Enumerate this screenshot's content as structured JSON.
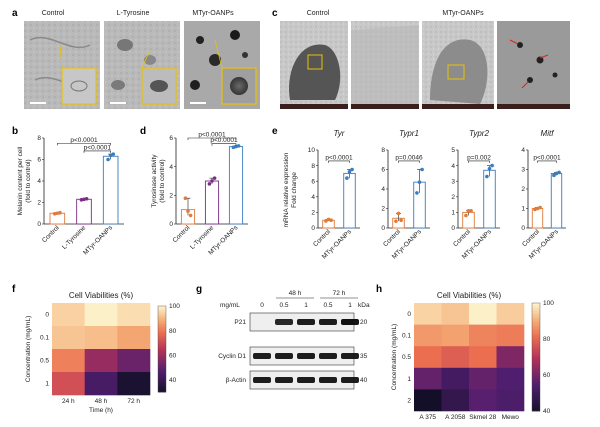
{
  "panels": {
    "a": {
      "label": "a",
      "titles": [
        "Control",
        "L-Tyrosine",
        "MTyr-OANPs"
      ]
    },
    "c": {
      "label": "c",
      "titles": [
        "Control",
        "MTyr-OANPs"
      ]
    },
    "b": {
      "label": "b"
    },
    "d": {
      "label": "d"
    },
    "e": {
      "label": "e"
    },
    "f": {
      "label": "f"
    },
    "g": {
      "label": "g"
    },
    "h": {
      "label": "h"
    }
  },
  "chart_data": [
    {
      "id": "b",
      "type": "bar",
      "ylabel": "Melanin content per cell\n(fold to control)",
      "categories": [
        "Control",
        "L-Tyrosine",
        "MTyr-OANPs"
      ],
      "values": [
        1.0,
        2.3,
        6.3
      ],
      "points": [
        [
          0.95,
          1.0,
          1.05
        ],
        [
          2.25,
          2.3,
          2.35
        ],
        [
          6.0,
          6.4,
          6.5
        ]
      ],
      "ylim": [
        0,
        8
      ],
      "yticks": [
        0,
        2,
        4,
        6,
        8
      ],
      "colors": [
        "#e07b39",
        "#7b2c85",
        "#3a7dc0"
      ],
      "brackets": [
        {
          "from": 0,
          "to": 2,
          "label": "p<0.0001",
          "y": 7.5
        },
        {
          "from": 1,
          "to": 2,
          "label": "p<0.0001",
          "y": 6.8
        }
      ]
    },
    {
      "id": "d",
      "type": "bar",
      "ylabel": "Tyrosinase activity\n(fold to control)",
      "categories": [
        "Control",
        "L-Tyrosine",
        "MTyr-OANPs"
      ],
      "values": [
        1.0,
        3.0,
        5.4
      ],
      "points": [
        [
          1.8,
          0.9,
          0.6
        ],
        [
          2.8,
          3.0,
          3.2
        ],
        [
          5.35,
          5.4,
          5.45
        ]
      ],
      "ylim": [
        0,
        6
      ],
      "yticks": [
        0,
        2,
        4,
        6
      ],
      "colors": [
        "#e07b39",
        "#7b2c85",
        "#3a7dc0"
      ],
      "brackets": [
        {
          "from": 0,
          "to": 2,
          "label": "p<0.0001",
          "y": 6.0
        },
        {
          "from": 1,
          "to": 2,
          "label": "p<0.0001",
          "y": 5.6
        }
      ]
    },
    {
      "id": "e",
      "type": "bar",
      "ylabel": "mRNA relative expression\nFold change",
      "genes": [
        {
          "name": "Tyr",
          "values": [
            1.0,
            7.0
          ],
          "points": [
            [
              0.9,
              1.1,
              1.0
            ],
            [
              6.4,
              7.2,
              7.5
            ]
          ],
          "ylim": [
            0,
            10
          ],
          "yticks": [
            0,
            2,
            4,
            6,
            8,
            10
          ],
          "p": "p<0.0001"
        },
        {
          "name": "Typr1",
          "values": [
            1.0,
            4.7
          ],
          "points": [
            [
              0.7,
              1.5,
              0.8
            ],
            [
              3.6,
              4.7,
              6.0
            ]
          ],
          "ylim": [
            0,
            8
          ],
          "yticks": [
            0,
            2,
            4,
            6,
            8
          ],
          "p": "p=0.0046"
        },
        {
          "name": "Typr2",
          "values": [
            1.0,
            3.7
          ],
          "points": [
            [
              0.8,
              1.1,
              1.1
            ],
            [
              3.3,
              3.8,
              4.0
            ]
          ],
          "ylim": [
            0,
            5
          ],
          "yticks": [
            0,
            1,
            2,
            3,
            4,
            5
          ],
          "p": "p=0.002"
        },
        {
          "name": "Mitf",
          "values": [
            1.0,
            2.8
          ],
          "points": [
            [
              0.95,
              1.0,
              1.05
            ],
            [
              2.7,
              2.8,
              2.85
            ]
          ],
          "ylim": [
            0,
            4
          ],
          "yticks": [
            0,
            1,
            2,
            3,
            4
          ],
          "p": "p<0.0001"
        }
      ],
      "categories": [
        "Control",
        "MTyr-OANPs"
      ],
      "colors": [
        "#e07b39",
        "#3a7dc0"
      ]
    },
    {
      "id": "f",
      "type": "heatmap",
      "title": "Cell Viabilities (%)",
      "ylabel": "Concentration (mg/mL)",
      "xlabel": "Time (h)",
      "rows": [
        "0",
        "0.1",
        "0.5",
        "1"
      ],
      "cols": [
        "24 h",
        "48 h",
        "72 h"
      ],
      "values": [
        [
          95,
          100,
          97
        ],
        [
          93,
          92,
          88
        ],
        [
          82,
          60,
          52
        ],
        [
          72,
          45,
          32
        ]
      ],
      "scale": [
        30,
        100
      ],
      "ticks": [
        40,
        60,
        80,
        100
      ]
    },
    {
      "id": "h",
      "type": "heatmap",
      "title": "Cell Viabilities (%)",
      "ylabel": "Concentration (mg/mL)",
      "rows": [
        "0",
        "0.1",
        "0.5",
        "1",
        "2"
      ],
      "cols": [
        "A 375",
        "A 2058",
        "Skmel 28",
        "Mewo"
      ],
      "values": [
        [
          96,
          94,
          100,
          95
        ],
        [
          88,
          89,
          85,
          84
        ],
        [
          82,
          79,
          82,
          62
        ],
        [
          58,
          52,
          58,
          55
        ],
        [
          38,
          48,
          56,
          54
        ]
      ],
      "scale": [
        40,
        100
      ],
      "ticks": [
        40,
        60,
        80,
        100
      ]
    }
  ],
  "blot": {
    "times": [
      "48 h",
      "72 h"
    ],
    "conc_label": "mg/mL",
    "conc": [
      "0",
      "0.5",
      "1",
      "0.5",
      "1"
    ],
    "kda_label": "kDa",
    "rows": [
      {
        "name": "P21",
        "kda": "20",
        "intensity": [
          0.0,
          0.9,
          0.95,
          0.95,
          1.0
        ]
      },
      {
        "name": "Cyclin D1",
        "kda": "35",
        "intensity": [
          0.95,
          0.95,
          0.95,
          0.95,
          0.95
        ]
      },
      {
        "name": "β-Actin",
        "kda": "40",
        "intensity": [
          0.95,
          0.95,
          0.95,
          0.95,
          0.95
        ]
      }
    ]
  }
}
